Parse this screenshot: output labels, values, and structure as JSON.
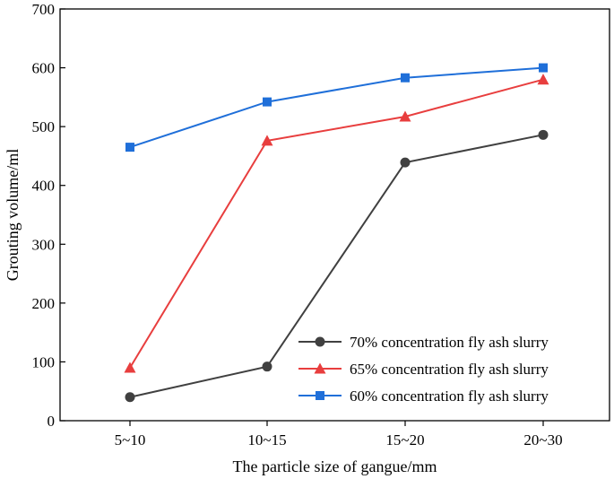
{
  "chart_data": {
    "type": "line",
    "title": "",
    "xlabel": "The particle size of gangue/mm",
    "ylabel": "Grouting volume/ml",
    "categories": [
      "5~10",
      "10~15",
      "15~20",
      "20~30"
    ],
    "ylim": [
      0,
      700
    ],
    "yticks": [
      0,
      100,
      200,
      300,
      400,
      500,
      600,
      700
    ],
    "grid": false,
    "legend_position": "bottom-right",
    "series": [
      {
        "name": "70% concentration fly ash slurry",
        "color": "#404040",
        "marker": "circle",
        "values": [
          40,
          92,
          439,
          486
        ]
      },
      {
        "name": "65% concentration fly ash slurry",
        "color": "#e83e3e",
        "marker": "triangle",
        "values": [
          90,
          476,
          517,
          580
        ]
      },
      {
        "name": "60% concentration fly ash slurry",
        "color": "#1f6fd9",
        "marker": "square",
        "values": [
          465,
          542,
          583,
          600
        ]
      }
    ]
  }
}
